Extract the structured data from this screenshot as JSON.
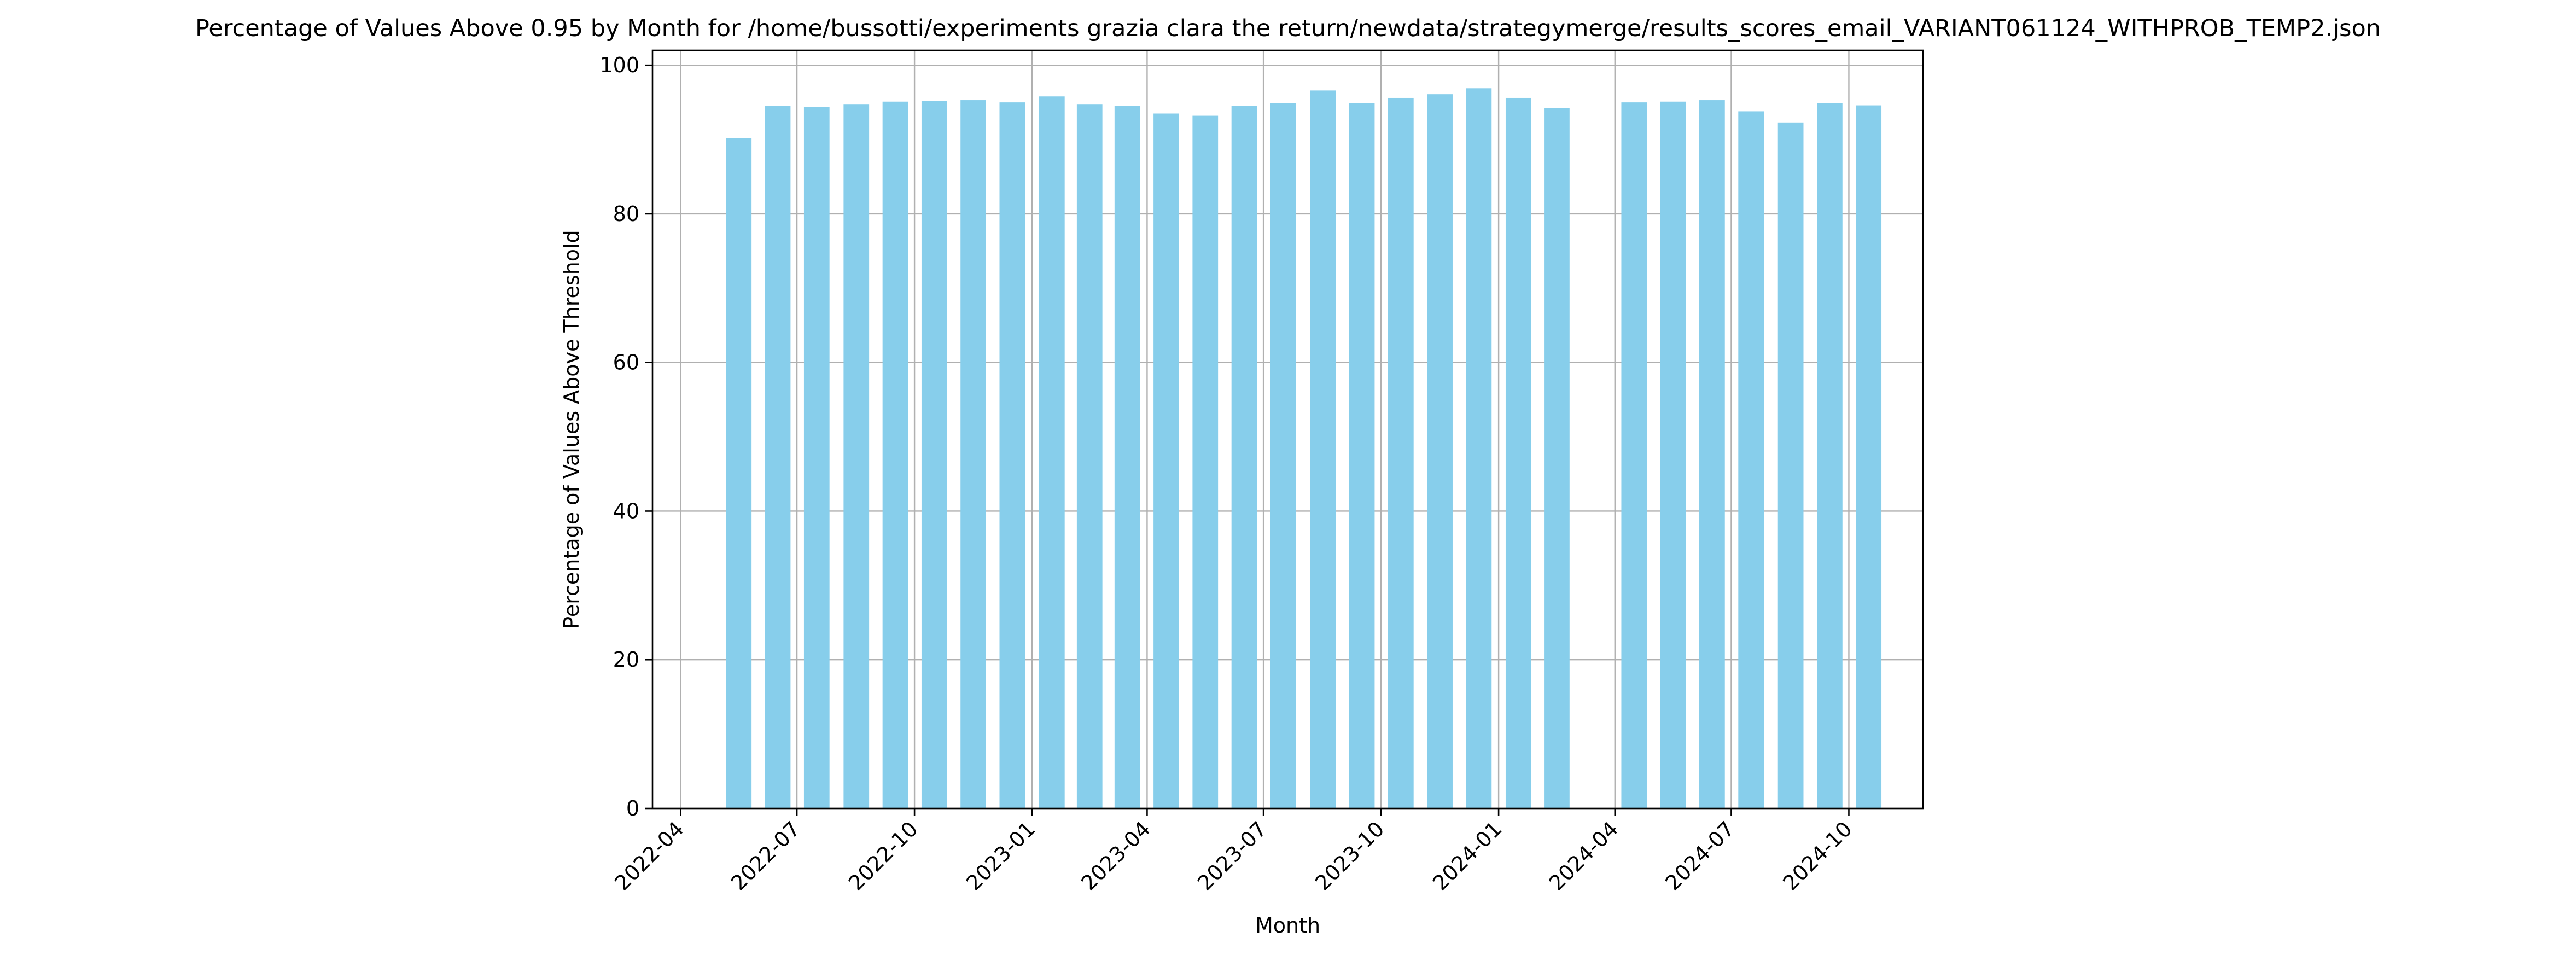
{
  "chart_data": {
    "type": "bar",
    "title": "Percentage of Values Above 0.95 by Month for /home/bussotti/experiments grazia clara the return/newdata/strategymerge/results_scores_email_VARIANT061124_WITHPROB_TEMP2.json",
    "xlabel": "Month",
    "ylabel": "Percentage of Values Above Threshold",
    "x": [
      "2022-05",
      "2022-06",
      "2022-07",
      "2022-08",
      "2022-09",
      "2022-10",
      "2022-11",
      "2022-12",
      "2023-01",
      "2023-02",
      "2023-03",
      "2023-04",
      "2023-05",
      "2023-06",
      "2023-07",
      "2023-08",
      "2023-09",
      "2023-10",
      "2023-11",
      "2023-12",
      "2024-01",
      "2024-02",
      "2024-04",
      "2024-05",
      "2024-06",
      "2024-07",
      "2024-08",
      "2024-09",
      "2024-10"
    ],
    "values": [
      90.2,
      94.5,
      94.4,
      94.7,
      95.1,
      95.2,
      95.3,
      95.0,
      95.8,
      94.7,
      94.5,
      93.5,
      93.2,
      94.5,
      94.9,
      96.6,
      94.9,
      95.6,
      96.1,
      96.9,
      95.6,
      94.2,
      95.0,
      95.1,
      95.3,
      93.8,
      92.3,
      94.9,
      94.6
    ],
    "ylim": [
      0,
      102
    ],
    "yticks": [
      0,
      20,
      40,
      60,
      80,
      100
    ],
    "xticks": [
      "2022-04",
      "2022-07",
      "2022-10",
      "2023-01",
      "2023-04",
      "2023-07",
      "2023-10",
      "2024-01",
      "2024-04",
      "2024-07",
      "2024-10"
    ],
    "xlim": [
      "2022-03-10",
      "2024-11-28"
    ],
    "grid": true,
    "color": "#87ceeb"
  }
}
